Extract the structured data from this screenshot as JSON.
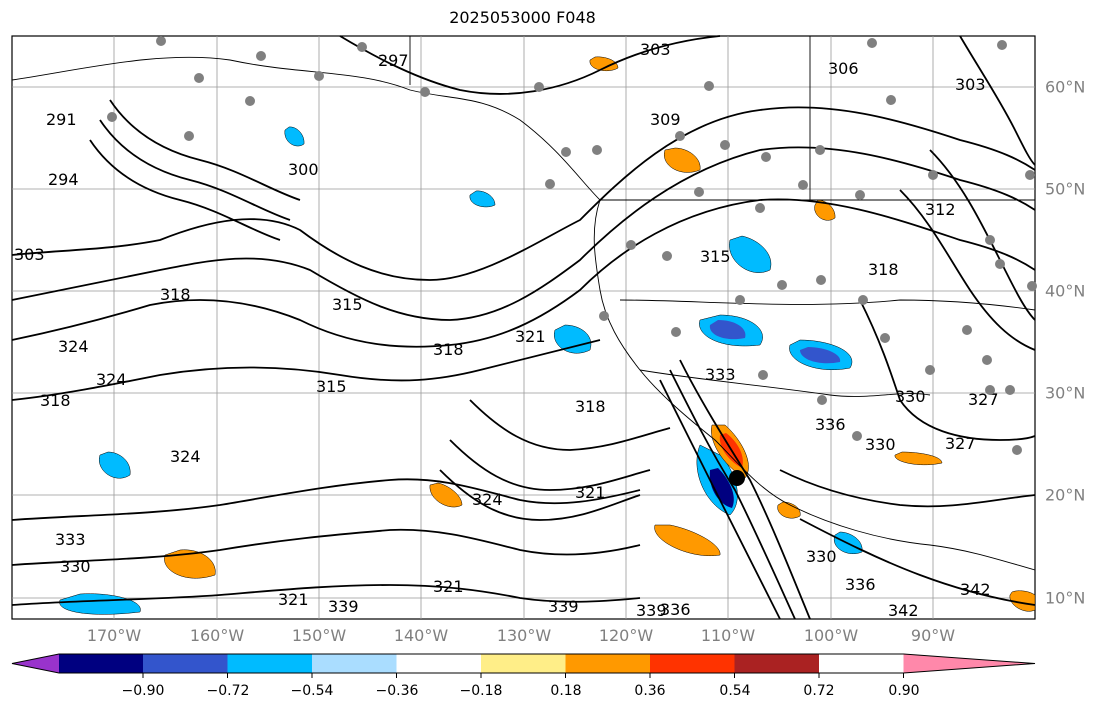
{
  "title": "2025053000 F048",
  "lon_labels": [
    "170°W",
    "160°W",
    "150°W",
    "140°W",
    "130°W",
    "120°W",
    "110°W",
    "100°W",
    "90°W"
  ],
  "lat_labels": [
    "60°N",
    "50°N",
    "40°N",
    "30°N",
    "20°N",
    "10°N"
  ],
  "contour_labels": [
    "297",
    "303",
    "306",
    "303",
    "291",
    "294",
    "300",
    "309",
    "303",
    "318",
    "315",
    "318",
    "324",
    "321",
    "324",
    "318",
    "315",
    "318",
    "324",
    "321",
    "330",
    "327",
    "333",
    "330",
    "336",
    "339",
    "342",
    "339",
    "336",
    "321",
    "333",
    "330",
    "327",
    "336",
    "342",
    "330",
    "324",
    "321",
    "318",
    "315",
    "312",
    "339"
  ],
  "colorbar": {
    "ticks": [
      "−0.90",
      "−0.72",
      "−0.54",
      "−0.36",
      "−0.18",
      "0.18",
      "0.36",
      "0.54",
      "0.72",
      "0.90"
    ],
    "colors": [
      "#9933cc",
      "#000080",
      "#3355cc",
      "#00bbff",
      "#aaddff",
      "#ffffff",
      "#ffee88",
      "#ff9900",
      "#ff3300",
      "#aa2222",
      "#ff88aa"
    ]
  }
}
